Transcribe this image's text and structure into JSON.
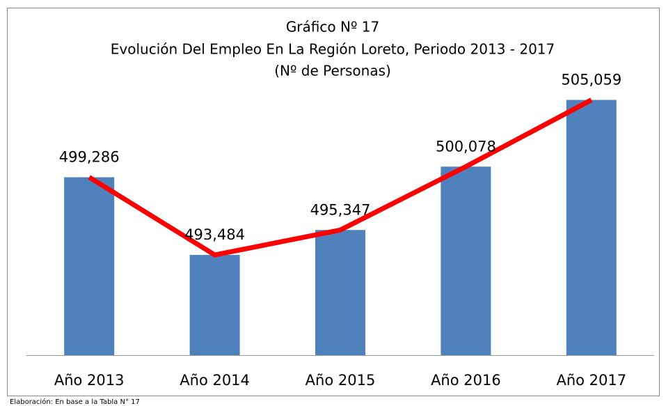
{
  "chart_data": {
    "type": "bar",
    "title": "Gráfico Nº 17",
    "subtitle": "Evolución Del Empleo En La Región Loreto, Periodo 2013 - 2017",
    "unit_note": "(Nº de Personas)",
    "categories": [
      "Año 2013",
      "Año 2014",
      "Año 2015",
      "Año 2016",
      "Año 2017"
    ],
    "values": [
      499286,
      493484,
      495347,
      500078,
      505059
    ],
    "value_labels": [
      "499,286",
      "493,484",
      "495,347",
      "500,078",
      "505,059"
    ],
    "color": "#4f81bd",
    "line_color": "#ff0000",
    "ylim": [
      486000,
      506000
    ],
    "source": "Elaboración: En base a la Tabla N° 17"
  }
}
